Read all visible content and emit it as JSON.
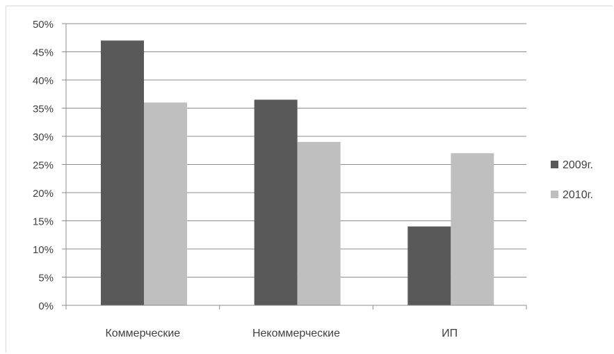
{
  "chart_data": {
    "type": "bar",
    "categories": [
      "Коммерческие",
      "Некоммерческие",
      "ИП"
    ],
    "series": [
      {
        "name": "2009г.",
        "color": "#595959",
        "values": [
          47,
          36.5,
          14
        ]
      },
      {
        "name": "2010г.",
        "color": "#bfbfbf",
        "values": [
          36,
          29,
          27
        ]
      }
    ],
    "yticks": [
      "0%",
      "5%",
      "10%",
      "15%",
      "20%",
      "25%",
      "30%",
      "35%",
      "40%",
      "45%",
      "50%"
    ],
    "ylim": [
      0,
      50
    ],
    "grid": true,
    "legend_position": "right"
  }
}
